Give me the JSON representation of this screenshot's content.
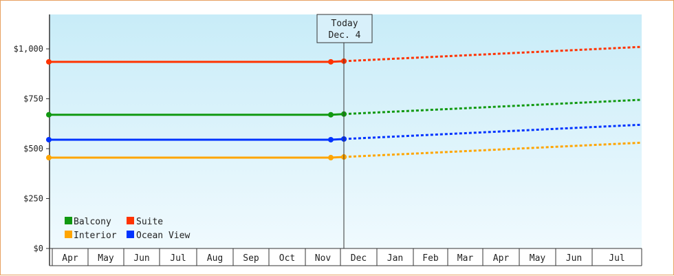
{
  "chart_data": {
    "type": "line",
    "title": "",
    "xlabel": "",
    "ylabel": "",
    "ylim": [
      0,
      1150
    ],
    "yticks": [
      "$0",
      "$250",
      "$500",
      "$750",
      "$1,000"
    ],
    "ytick_values": [
      0,
      250,
      500,
      750,
      1000
    ],
    "months": [
      "Apr",
      "May",
      "Jun",
      "Jul",
      "Aug",
      "Sep",
      "Oct",
      "Nov",
      "Dec",
      "Jan",
      "Feb",
      "Mar",
      "Apr",
      "May",
      "Jun",
      "Jul"
    ],
    "grid": false,
    "legend_position": "bottom-left inside",
    "today_marker": {
      "line1": "Today",
      "line2": "Dec. 4"
    },
    "series": [
      {
        "name": "Balcony",
        "color": "#119911",
        "historical_value": 670,
        "today_value": 670,
        "projected_end_value": 745
      },
      {
        "name": "Suite",
        "color": "#ff3300",
        "historical_value": 935,
        "today_value": 935,
        "projected_end_value": 1010
      },
      {
        "name": "Interior",
        "color": "#ffa500",
        "historical_value": 455,
        "today_value": 455,
        "projected_end_value": 530
      },
      {
        "name": "Ocean View",
        "color": "#0033ff",
        "historical_value": 545,
        "today_value": 545,
        "projected_end_value": 620
      }
    ]
  },
  "legend": {
    "items": [
      {
        "label": "Balcony",
        "color": "#119911"
      },
      {
        "label": "Suite",
        "color": "#ff3300"
      },
      {
        "label": "Interior",
        "color": "#ffa500"
      },
      {
        "label": "Ocean View",
        "color": "#0033ff"
      }
    ]
  },
  "today": {
    "line1": "Today",
    "line2": "Dec. 4"
  }
}
